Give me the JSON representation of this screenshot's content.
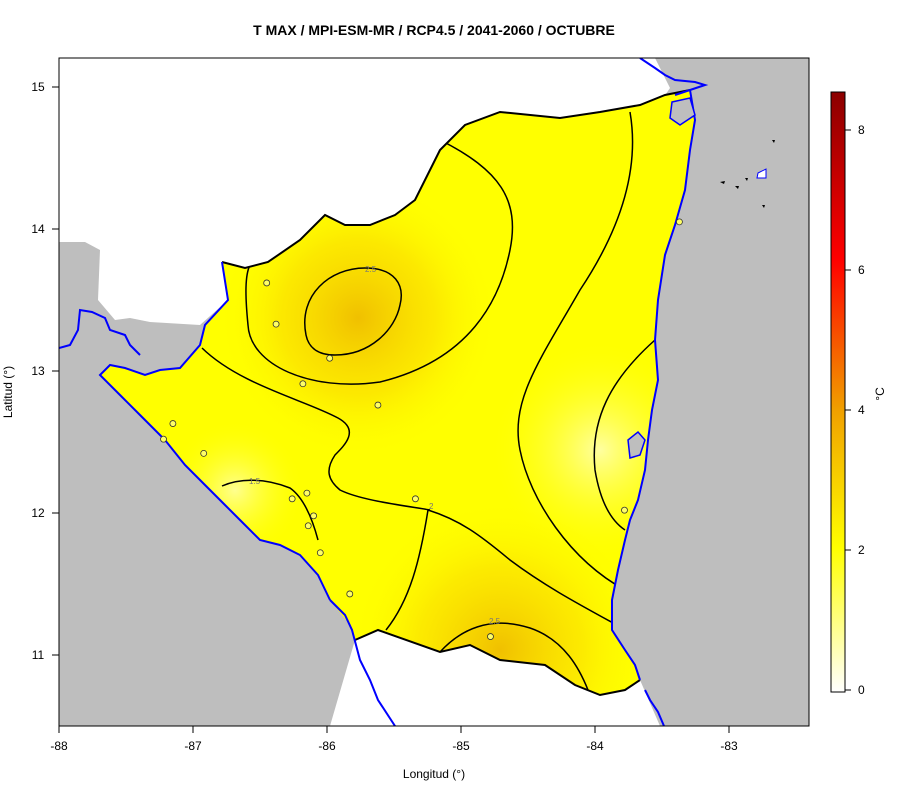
{
  "title": "T MAX / MPI-ESM-MR / RCP4.5 / 2041-2060 / OCTUBRE",
  "xlabel": "Longitud (°)",
  "ylabel": "Latitud (°)",
  "colorbar_label": "°C",
  "colors": {
    "sea": "#bebebe",
    "coast": "#0000ff",
    "border": "#000000",
    "field_low": "#ffff99",
    "field_high": "#f0b800"
  },
  "x_ticks": [
    "-88",
    "-87",
    "-86",
    "-85",
    "-84",
    "-83"
  ],
  "y_ticks": [
    "11",
    "12",
    "13",
    "14",
    "15"
  ],
  "colorbar_ticks": [
    "0",
    "2",
    "4",
    "6",
    "8"
  ],
  "contour_labels": [
    "2.5",
    "1.5",
    "2",
    "2.5"
  ],
  "chart_data": {
    "type": "heatmap",
    "title": "T MAX / MPI-ESM-MR / RCP4.5 / 2041-2060 / OCTUBRE",
    "xlabel": "Longitud (°)",
    "ylabel": "Latitud (°)",
    "xlim": [
      -88,
      -82.4
    ],
    "ylim": [
      10.5,
      15.2
    ],
    "x_ticks": [
      -88,
      -87,
      -86,
      -85,
      -84,
      -83
    ],
    "y_ticks": [
      11,
      12,
      13,
      14,
      15
    ],
    "colorbar": {
      "label": "°C",
      "range": [
        0,
        8.5
      ],
      "ticks": [
        0,
        2,
        4,
        6,
        8
      ],
      "colors": [
        "#ffffff",
        "#ffff00",
        "#f0a000",
        "#ff0000",
        "#8b0000"
      ]
    },
    "contour_levels": [
      1.5,
      2,
      2.5
    ],
    "stations": [
      {
        "lon": -86.45,
        "lat": 13.62
      },
      {
        "lon": -86.38,
        "lat": 13.33
      },
      {
        "lon": -85.98,
        "lat": 13.09
      },
      {
        "lon": -86.18,
        "lat": 12.91
      },
      {
        "lon": -85.62,
        "lat": 12.76
      },
      {
        "lon": -87.15,
        "lat": 12.63
      },
      {
        "lon": -87.22,
        "lat": 12.52
      },
      {
        "lon": -86.92,
        "lat": 12.42
      },
      {
        "lon": -86.26,
        "lat": 12.1
      },
      {
        "lon": -86.15,
        "lat": 12.14
      },
      {
        "lon": -86.1,
        "lat": 11.98
      },
      {
        "lon": -86.14,
        "lat": 11.91
      },
      {
        "lon": -86.05,
        "lat": 11.72
      },
      {
        "lon": -85.34,
        "lat": 12.1
      },
      {
        "lon": -85.83,
        "lat": 11.43
      },
      {
        "lon": -84.78,
        "lat": 11.13
      },
      {
        "lon": -83.78,
        "lat": 12.02
      },
      {
        "lon": -83.37,
        "lat": 14.05
      }
    ]
  }
}
